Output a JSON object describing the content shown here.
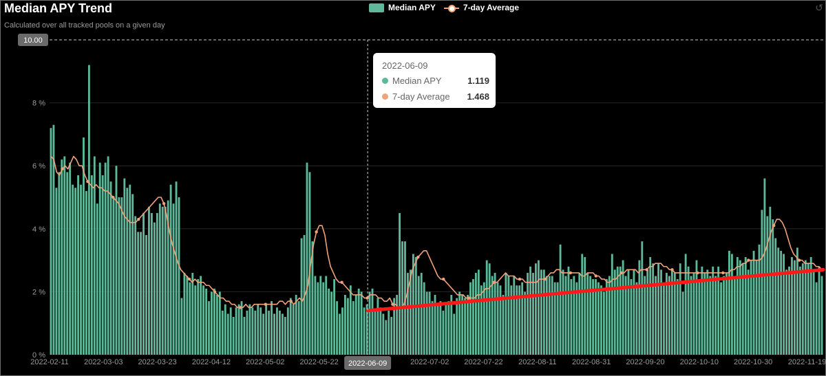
{
  "header": {
    "title": "Median APY Trend",
    "subtitle": "Calculated over all tracked pools on a given day"
  },
  "legend": {
    "bar_label": "Median APY",
    "line_label": "7-day Average"
  },
  "tooltip": {
    "date": "2022-06-09",
    "rows": [
      {
        "label": "Median APY",
        "value": "1.119",
        "color": "#5db99a"
      },
      {
        "label": "7-day Average",
        "value": "1.468",
        "color": "#f0a27a"
      }
    ]
  },
  "crosshair": {
    "x_label": "2022-06-09",
    "y_label": "10.00"
  },
  "colors": {
    "bar": "#5db99a",
    "line": "#f0a27a",
    "trend": "#ff1a1a",
    "grid": "#262626",
    "axis_text": "#9a9a9a"
  },
  "icons": {
    "corner": "restore-icon"
  },
  "chart_data": {
    "type": "bar",
    "title": "Median APY Trend",
    "subtitle": "Calculated over all tracked pools on a given day",
    "x_start": "2022-02-11",
    "x_end": "2022-11-25",
    "xtick_labels": [
      "2022-02-11",
      "2022-03-03",
      "2022-03-23",
      "2022-04-12",
      "2022-05-02",
      "2022-05-22",
      "2022-06-09",
      "2022-07-02",
      "2022-07-22",
      "2022-08-11",
      "2022-08-31",
      "2022-09-20",
      "2022-10-10",
      "2022-10-30",
      "2022-11-19"
    ],
    "ytick_labels": [
      "0 %",
      "2 %",
      "4 %",
      "6 %",
      "8 %"
    ],
    "ylim": [
      0,
      10
    ],
    "ylabel": "",
    "xlabel": "",
    "grid": true,
    "legend_position": "top-center",
    "series": [
      {
        "name": "Median APY",
        "type": "bar",
        "values": [
          7.2,
          7.3,
          5.3,
          5.8,
          6.2,
          6.3,
          5.8,
          6.1,
          5.4,
          5.3,
          5.7,
          5.4,
          6.9,
          5.2,
          9.2,
          5.7,
          6.3,
          4.8,
          6.1,
          5.7,
          6.1,
          6.3,
          5.5,
          5.0,
          6.0,
          5.0,
          5.0,
          5.6,
          5.3,
          5.4,
          5.1,
          4.4,
          3.9,
          3.9,
          4.5,
          3.8,
          4.7,
          4.5,
          4.2,
          4.5,
          4.8,
          4.7,
          4.7,
          4.9,
          5.4,
          4.8,
          5.5,
          5.0,
          1.8,
          2.6,
          2.5,
          2.3,
          2.6,
          2.2,
          2.4,
          2.5,
          2.2,
          2.1,
          1.7,
          2.0,
          2.1,
          1.9,
          2.0,
          1.4,
          1.6,
          1.3,
          1.5,
          1.2,
          1.5,
          1.6,
          1.7,
          1.2,
          1.4,
          1.6,
          1.5,
          1.4,
          1.6,
          1.5,
          1.3,
          1.6,
          1.4,
          1.7,
          1.3,
          1.5,
          1.4,
          1.3,
          1.2,
          1.5,
          1.8,
          1.6,
          1.9,
          1.7,
          3.7,
          3.8,
          6.1,
          5.8,
          3.6,
          2.5,
          2.3,
          2.5,
          2.3,
          2.5,
          2.1,
          2.0,
          2.4,
          1.7,
          1.3,
          1.5,
          1.9,
          1.8,
          2.2,
          1.7,
          1.9,
          2.1,
          2.0,
          1.5,
          1.6,
          2.0,
          2.1,
          1.4,
          1.8,
          1.5,
          1.3,
          1.1,
          1.4,
          1.2,
          1.8,
          1.9,
          4.5,
          3.6,
          3.6,
          2.6,
          2.7,
          3.2,
          3.1,
          2.5,
          2.6,
          2.3,
          2.0,
          2.0,
          1.7,
          1.9,
          1.6,
          1.7,
          1.4,
          1.6,
          1.7,
          1.9,
          1.3,
          1.8,
          2.0,
          1.9,
          1.8,
          1.9,
          2.3,
          2.4,
          2.6,
          2.7,
          2.2,
          2.3,
          3.0,
          2.9,
          2.5,
          2.6,
          2.3,
          2.2,
          1.9,
          2.6,
          2.5,
          2.2,
          2.5,
          2.2,
          2.2,
          2.3,
          2.0,
          2.6,
          2.8,
          2.6,
          2.9,
          3.0,
          2.7,
          2.7,
          2.5,
          2.5,
          2.5,
          2.3,
          2.3,
          3.5,
          2.7,
          2.5,
          2.8,
          2.4,
          2.5,
          2.3,
          2.6,
          3.2,
          3.1,
          2.6,
          2.5,
          2.4,
          2.4,
          2.3,
          2.2,
          2.0,
          2.4,
          2.5,
          3.2,
          2.7,
          2.8,
          2.8,
          3.0,
          2.5,
          2.7,
          2.4,
          2.7,
          2.3,
          3.0,
          3.6,
          2.5,
          2.7,
          3.1,
          2.9,
          2.5,
          2.9,
          2.7,
          2.2,
          2.6,
          2.5,
          2.7,
          2.6,
          2.4,
          2.9,
          2.0,
          3.2,
          2.8,
          2.5,
          2.6,
          3.0,
          2.4,
          2.8,
          2.6,
          2.7,
          2.5,
          2.8,
          2.5,
          2.8,
          2.3,
          2.5,
          2.6,
          3.3,
          3.2,
          2.5,
          3.1,
          3.0,
          2.9,
          3.1,
          2.7,
          3.0,
          3.3,
          3.0,
          3.5,
          4.6,
          5.6,
          4.4,
          4.7,
          4.3,
          3.7,
          3.4,
          3.3,
          3.2,
          2.7,
          2.8,
          3.1,
          3.0,
          3.4,
          2.8,
          2.9,
          3.0,
          2.9,
          3.1,
          2.7,
          2.3,
          2.8,
          2.5
        ]
      },
      {
        "name": "7-day Average",
        "type": "line",
        "values": [
          6.3,
          6.2,
          5.8,
          5.7,
          5.9,
          6.0,
          5.9,
          6.1,
          6.3,
          6.2,
          6.0,
          6.0,
          5.7,
          5.5,
          5.4,
          5.3,
          5.4,
          5.3,
          5.3,
          5.2,
          5.2,
          5.1,
          5.0,
          4.9,
          4.8,
          4.6,
          4.4,
          4.3,
          4.2,
          4.2,
          4.2,
          4.3,
          4.4,
          4.5,
          4.6,
          4.7,
          4.8,
          4.9,
          5.0,
          5.0,
          4.8,
          4.4,
          3.9,
          3.5,
          3.2,
          2.9,
          2.7,
          2.6,
          2.5,
          2.4,
          2.3,
          2.4,
          2.3,
          2.3,
          2.3,
          2.2,
          2.2,
          2.1,
          2.0,
          1.9,
          1.8,
          1.8,
          1.7,
          1.7,
          1.6,
          1.6,
          1.5,
          1.5,
          1.5,
          1.6,
          1.5,
          1.5,
          1.6,
          1.6,
          1.6,
          1.6,
          1.6,
          1.6,
          1.6,
          1.6,
          1.6,
          1.7,
          1.7,
          1.6,
          1.7,
          1.7,
          1.6,
          1.7,
          1.8,
          1.7,
          1.9,
          2.2,
          2.9,
          3.5,
          3.9,
          4.1,
          4.1,
          3.8,
          3.2,
          2.8,
          2.6,
          2.4,
          2.3,
          2.3,
          2.2,
          2.1,
          2.0,
          1.9,
          1.9,
          1.9,
          1.9,
          1.8,
          1.8,
          1.9,
          1.9,
          1.9,
          1.8,
          1.8,
          1.7,
          1.7,
          1.8,
          1.6,
          1.6,
          1.5,
          1.5,
          1.6,
          1.9,
          2.3,
          2.7,
          2.9,
          3.1,
          3.2,
          3.3,
          3.3,
          3.1,
          2.9,
          2.7,
          2.5,
          2.4,
          2.4,
          2.3,
          2.2,
          2.1,
          2.0,
          1.9,
          1.9,
          1.9,
          1.8,
          1.8,
          1.8,
          1.8,
          1.9,
          1.9,
          2.0,
          2.1,
          2.1,
          2.2,
          2.3,
          2.3,
          2.4,
          2.5,
          2.6,
          2.5,
          2.5,
          2.5,
          2.4,
          2.4,
          2.4,
          2.3,
          2.3,
          2.3,
          2.3,
          2.3,
          2.4,
          2.4,
          2.4,
          2.5,
          2.6,
          2.6,
          2.7,
          2.7,
          2.6,
          2.6,
          2.6,
          2.6,
          2.6,
          2.6,
          2.6,
          2.5,
          2.5,
          2.6,
          2.6,
          2.6,
          2.5,
          2.5,
          2.4,
          2.4,
          2.3,
          2.3,
          2.4,
          2.4,
          2.5,
          2.6,
          2.6,
          2.7,
          2.7,
          2.7,
          2.7,
          2.6,
          2.7,
          2.7,
          2.7,
          2.8,
          2.8,
          2.9,
          2.9,
          2.9,
          2.8,
          2.8,
          2.7,
          2.7,
          2.6,
          2.6,
          2.6,
          2.6,
          2.6,
          2.6,
          2.6,
          2.6,
          2.6,
          2.6,
          2.6,
          2.6,
          2.6,
          2.6,
          2.6,
          2.6,
          2.6,
          2.6,
          2.6,
          2.6,
          2.7,
          2.7,
          2.8,
          2.8,
          2.9,
          2.9,
          3.0,
          3.0,
          3.0,
          3.0,
          3.0,
          3.1,
          3.3,
          3.6,
          3.9,
          4.1,
          4.3,
          4.3,
          4.2,
          4.0,
          3.7,
          3.4,
          3.2,
          3.1,
          3.0,
          3.0,
          2.9,
          2.9,
          2.9,
          2.9,
          2.8,
          2.8,
          2.7
        ]
      }
    ],
    "annotations": [
      {
        "type": "trend_line",
        "color": "#ff1a1a",
        "from": {
          "x": "2022-06-09",
          "y": 1.4
        },
        "to": {
          "x": "2022-11-25",
          "y": 2.7
        }
      },
      {
        "type": "crosshair",
        "x": "2022-06-09",
        "y": 10.0
      }
    ]
  }
}
